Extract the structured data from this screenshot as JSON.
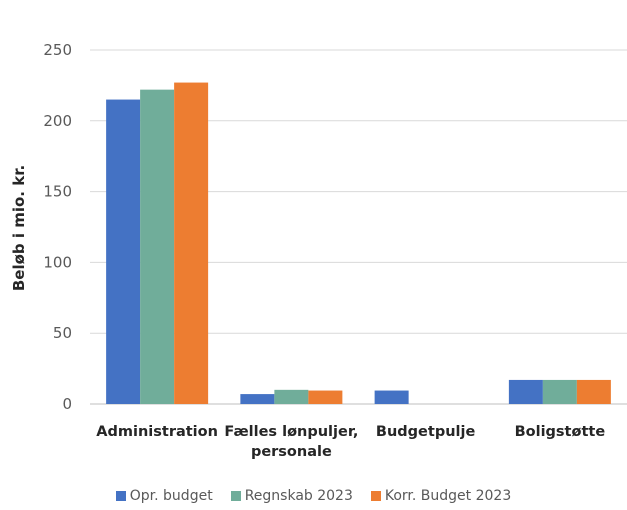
{
  "chart_data": {
    "type": "bar",
    "title": "",
    "ylabel": "Beløb i mio. kr.",
    "xlabel": "",
    "ylim": [
      0,
      250
    ],
    "yticks": [
      "0",
      "50",
      "100",
      "150",
      "200",
      "250"
    ],
    "grid": true,
    "legend_position": "bottom",
    "categories": [
      [
        "Administration"
      ],
      [
        "Fælles lønpuljer,",
        "personale"
      ],
      [
        "Budgetpulje"
      ],
      [
        "Boligstøtte"
      ]
    ],
    "series": [
      {
        "name": "Opr. budget",
        "color": "#4472C4",
        "values": [
          215,
          7,
          9.5,
          17
        ]
      },
      {
        "name": "Regnskab 2023",
        "color": "#70AD9A",
        "values": [
          222,
          10,
          0,
          17
        ]
      },
      {
        "name": "Korr. Budget 2023",
        "color": "#ED7D31",
        "values": [
          227,
          9.5,
          0,
          17
        ]
      }
    ]
  }
}
